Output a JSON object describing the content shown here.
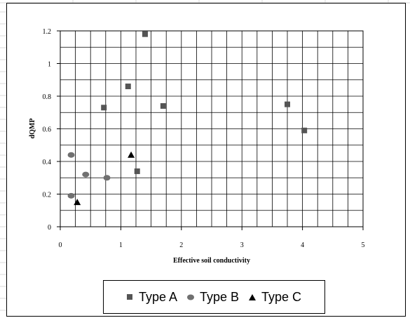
{
  "chart_data": {
    "type": "scatter",
    "xlabel": "Effective soil conductivity",
    "ylabel": "dQMP",
    "xlim": [
      0,
      5
    ],
    "ylim": [
      0,
      1.2
    ],
    "x_ticks": [
      "0",
      "1",
      "2",
      "3",
      "4",
      "5"
    ],
    "y_ticks": [
      "0",
      "0.2",
      "0.4",
      "0.6",
      "0.8",
      "1",
      "1.2"
    ],
    "grid": true,
    "legend_position": "bottom",
    "series": [
      {
        "name": "Type A",
        "marker": "square",
        "color": "#555555",
        "points": [
          {
            "x": 0.72,
            "y": 0.73
          },
          {
            "x": 1.12,
            "y": 0.86
          },
          {
            "x": 1.4,
            "y": 1.18
          },
          {
            "x": 1.7,
            "y": 0.74
          },
          {
            "x": 1.27,
            "y": 0.34
          },
          {
            "x": 3.75,
            "y": 0.75
          },
          {
            "x": 4.03,
            "y": 0.59
          }
        ]
      },
      {
        "name": "Type B",
        "marker": "circle",
        "color": "#707070",
        "points": [
          {
            "x": 0.18,
            "y": 0.44
          },
          {
            "x": 0.42,
            "y": 0.32
          },
          {
            "x": 0.77,
            "y": 0.3
          },
          {
            "x": 0.18,
            "y": 0.19
          }
        ]
      },
      {
        "name": "Type C",
        "marker": "triangle",
        "color": "#000000",
        "points": [
          {
            "x": 1.17,
            "y": 0.44
          },
          {
            "x": 0.28,
            "y": 0.15
          }
        ]
      }
    ]
  }
}
